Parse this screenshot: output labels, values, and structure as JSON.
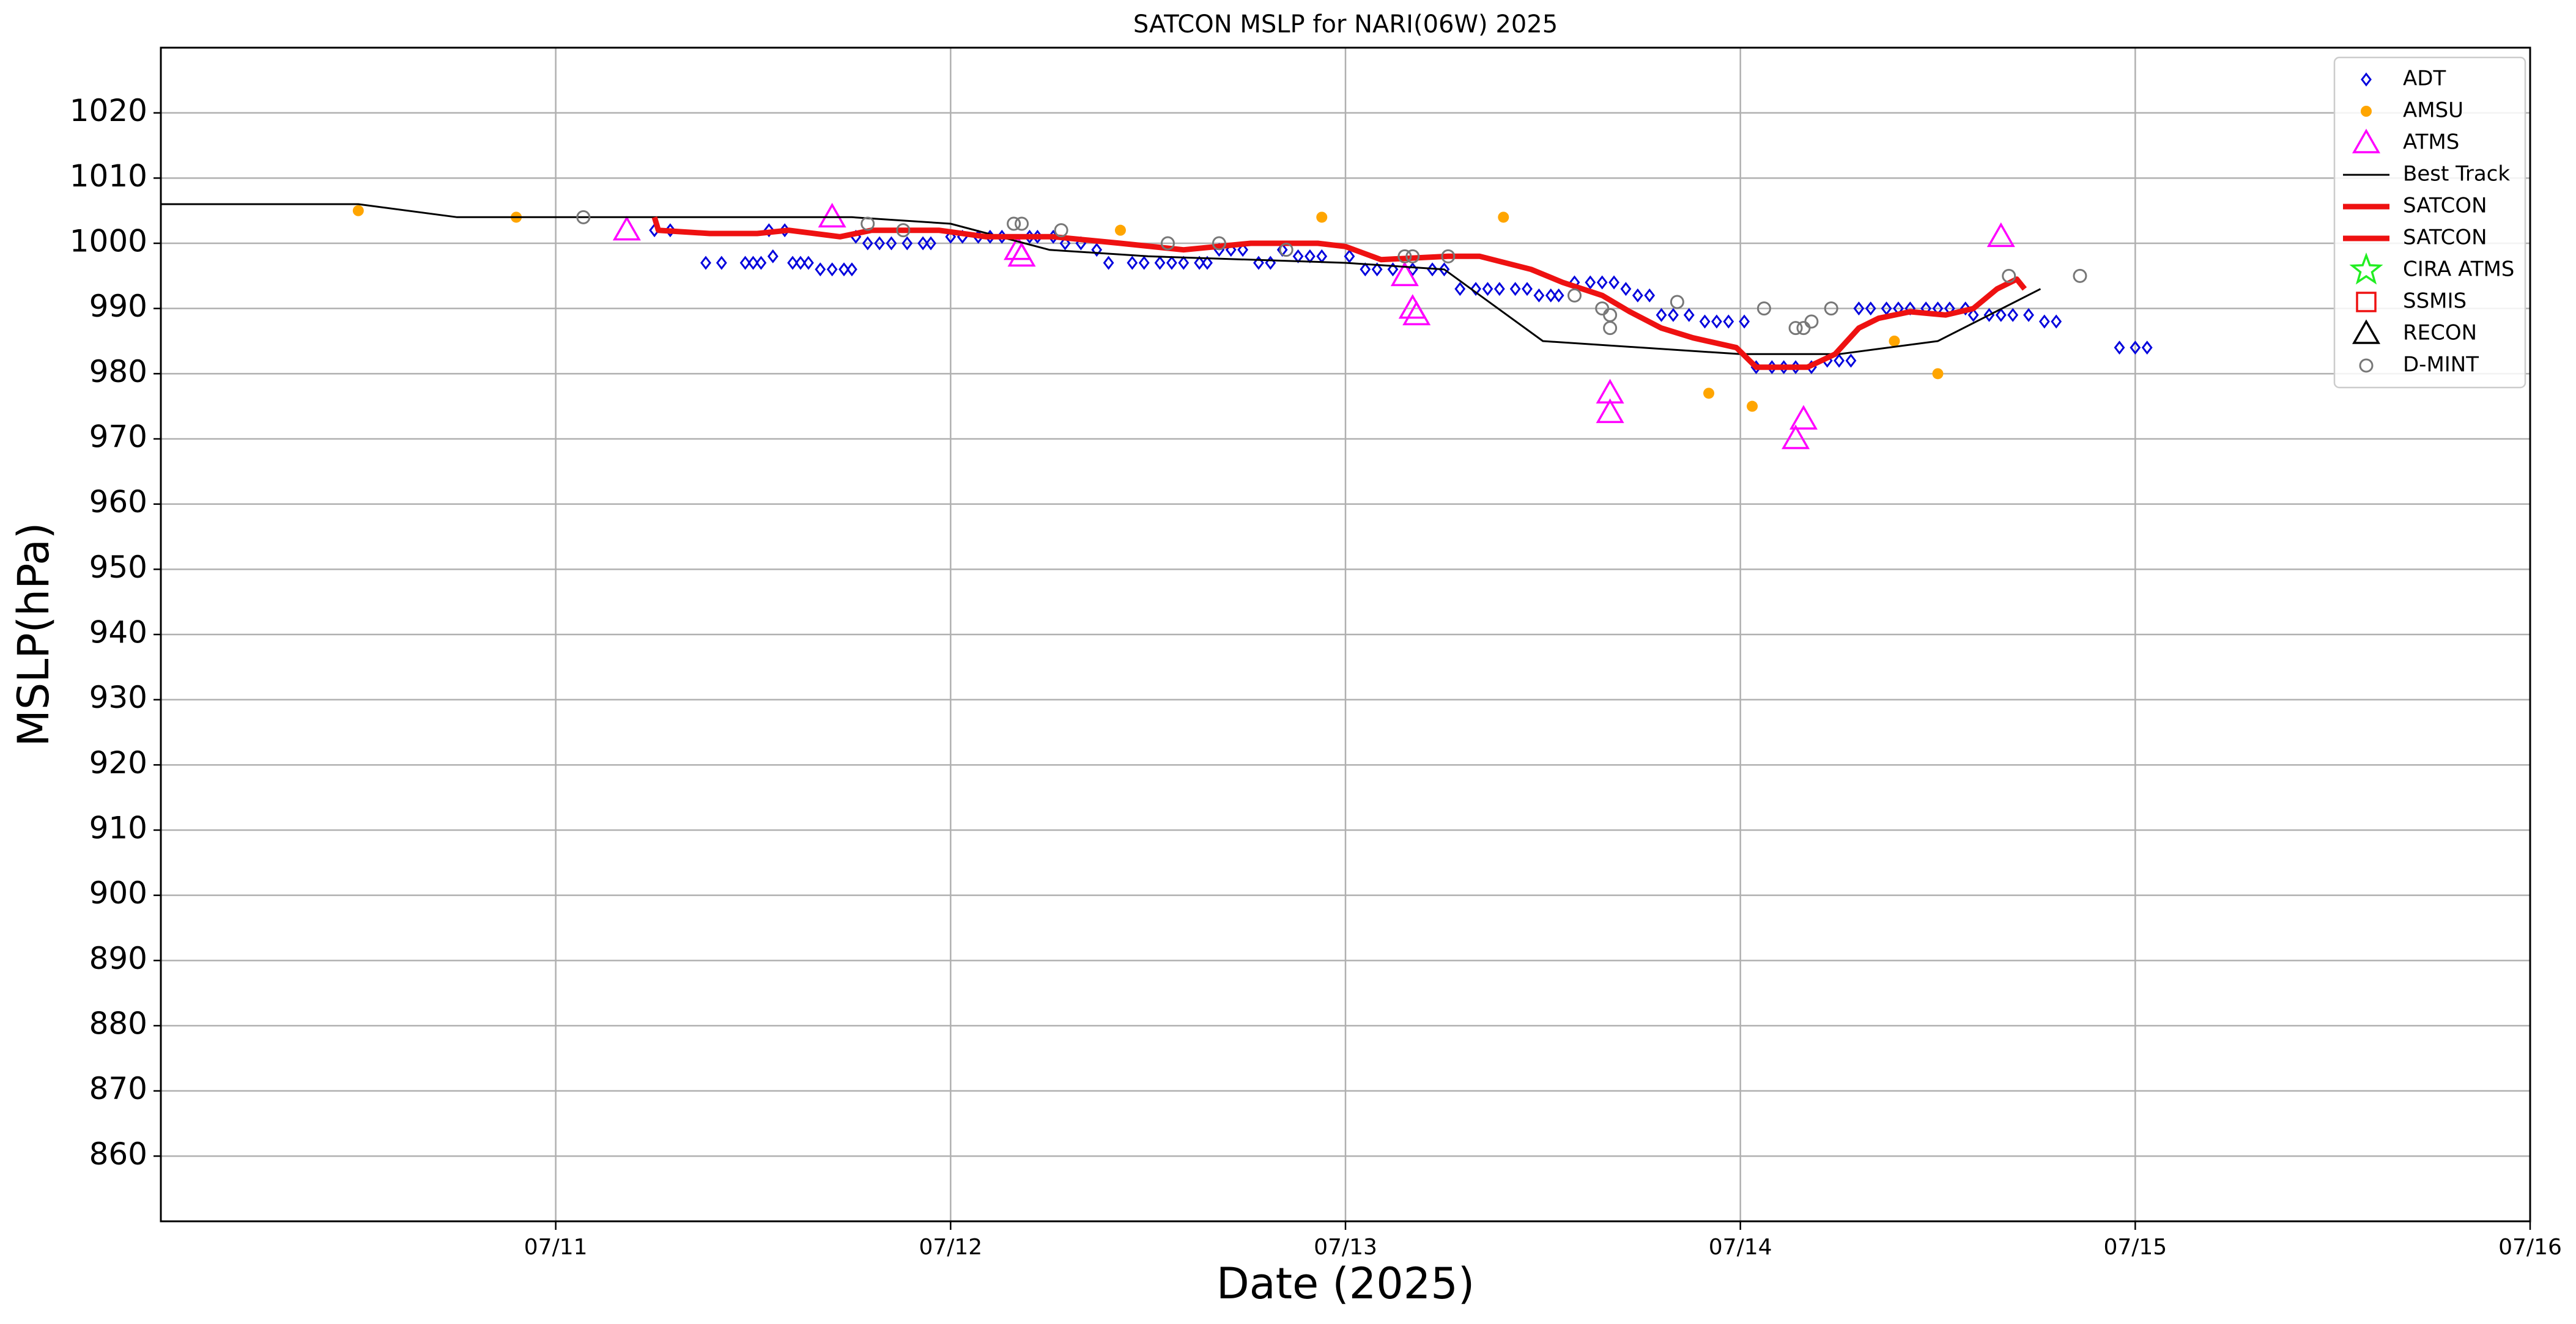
{
  "chart_data": {
    "type": "scatter",
    "title": "SATCON MSLP for NARI(06W) 2025",
    "xlabel": "Date (2025)",
    "ylabel": "MSLP(hPa)",
    "xlim": [
      10,
      16
    ],
    "xticks": [
      {
        "value": 11,
        "label": "07/11"
      },
      {
        "value": 12,
        "label": "07/12"
      },
      {
        "value": 13,
        "label": "07/13"
      },
      {
        "value": 14,
        "label": "07/14"
      },
      {
        "value": 15,
        "label": "07/15"
      },
      {
        "value": 16,
        "label": "07/16"
      }
    ],
    "ylim": [
      850,
      1030
    ],
    "yticks": [
      860,
      870,
      880,
      890,
      900,
      910,
      920,
      930,
      940,
      950,
      960,
      970,
      980,
      990,
      1000,
      1010,
      1020
    ],
    "grid": true,
    "legend": "upper right",
    "series": [
      {
        "name": "ADT",
        "color": "#0000dd",
        "marker": "diamond",
        "x": [
          11.25,
          11.29,
          11.38,
          11.42,
          11.48,
          11.5,
          11.52,
          11.54,
          11.55,
          11.58,
          11.6,
          11.62,
          11.64,
          11.67,
          11.7,
          11.73,
          11.75,
          11.76,
          11.79,
          11.82,
          11.85,
          11.89,
          11.93,
          11.95,
          12.0,
          12.03,
          12.07,
          12.1,
          12.13,
          12.2,
          12.22,
          12.26,
          12.29,
          12.33,
          12.37,
          12.4,
          12.46,
          12.49,
          12.53,
          12.56,
          12.59,
          12.63,
          12.65,
          12.68,
          12.71,
          12.74,
          12.78,
          12.81,
          12.84,
          12.88,
          12.91,
          12.94,
          13.01,
          13.05,
          13.08,
          13.12,
          13.17,
          13.22,
          13.25,
          13.29,
          13.33,
          13.36,
          13.39,
          13.43,
          13.46,
          13.49,
          13.52,
          13.54,
          13.58,
          13.62,
          13.65,
          13.68,
          13.71,
          13.74,
          13.77,
          13.8,
          13.83,
          13.87,
          13.91,
          13.94,
          13.97,
          14.01,
          14.04,
          14.08,
          14.11,
          14.14,
          14.18,
          14.22,
          14.25,
          14.28,
          14.3,
          14.33,
          14.37,
          14.4,
          14.43,
          14.47,
          14.5,
          14.53,
          14.57,
          14.59,
          14.63,
          14.66,
          14.69,
          14.73,
          14.77,
          14.8,
          14.96,
          15.0,
          15.03
        ],
        "values": [
          1002,
          1002,
          997,
          997,
          997,
          997,
          997,
          1002,
          998,
          1002,
          997,
          997,
          997,
          996,
          996,
          996,
          996,
          1001,
          1000,
          1000,
          1000,
          1000,
          1000,
          1000,
          1001,
          1001,
          1001,
          1001,
          1001,
          1001,
          1001,
          1001,
          1000,
          1000,
          999,
          997,
          997,
          997,
          997,
          997,
          997,
          997,
          997,
          999,
          999,
          999,
          997,
          997,
          999,
          998,
          998,
          998,
          998,
          996,
          996,
          996,
          996,
          996,
          996,
          993,
          993,
          993,
          993,
          993,
          993,
          992,
          992,
          992,
          994,
          994,
          994,
          994,
          993,
          992,
          992,
          989,
          989,
          989,
          988,
          988,
          988,
          988,
          981,
          981,
          981,
          981,
          981,
          982,
          982,
          982,
          990,
          990,
          990,
          990,
          990,
          990,
          990,
          990,
          990,
          989,
          989,
          989,
          989,
          989,
          988,
          988,
          984,
          984,
          984
        ]
      },
      {
        "name": "AMSU",
        "color": "#ffa500",
        "marker": "dot",
        "x": [
          10.5,
          10.9,
          12.43,
          12.94,
          13.4,
          13.92,
          14.03,
          14.39,
          14.5
        ],
        "values": [
          1005,
          1004,
          1002,
          1004,
          1004,
          977,
          975,
          985,
          980
        ]
      },
      {
        "name": "ATMS",
        "color": "#ff00ff",
        "marker": "triangle",
        "x": [
          11.18,
          11.7,
          12.17,
          12.18,
          13.15,
          13.17,
          13.18,
          13.67,
          13.67,
          14.14,
          14.16,
          14.66
        ],
        "values": [
          1002,
          1004,
          999,
          998,
          995,
          990,
          989,
          977,
          974,
          970,
          973,
          1001
        ]
      },
      {
        "name": "Best Track",
        "color": "#000000",
        "marker": "line",
        "x": [
          10.0,
          10.5,
          10.75,
          11.75,
          12.0,
          12.25,
          12.5,
          13.0,
          13.25,
          13.5,
          14.0,
          14.25,
          14.5,
          14.76
        ],
        "values": [
          1006,
          1006,
          1004,
          1004,
          1003,
          999,
          998,
          997,
          996,
          985,
          983,
          983,
          985,
          993
        ]
      },
      {
        "name": "SATCON",
        "color": "#ee1111",
        "marker": "thickline",
        "x": [
          11.25,
          11.26,
          11.39,
          11.51,
          11.59,
          11.72,
          11.8,
          11.97,
          12.09,
          12.26,
          12.43,
          12.59,
          12.76,
          12.93,
          13.0,
          13.09,
          13.26,
          13.34,
          13.47,
          13.55,
          13.65,
          13.72,
          13.8,
          13.88,
          13.99,
          14.04,
          14.17,
          14.24,
          14.3,
          14.35,
          14.43,
          14.52,
          14.59,
          14.65,
          14.7,
          14.72
        ],
        "values": [
          1004,
          1002,
          1001.5,
          1001.5,
          1002,
          1001,
          1002,
          1002,
          1001,
          1001,
          1000,
          999,
          1000,
          1000,
          999.5,
          997.5,
          998,
          998,
          996,
          994,
          992,
          989.5,
          987,
          985.5,
          984,
          981,
          981,
          983,
          987,
          988.5,
          989.5,
          989,
          990,
          993,
          994.5,
          993
        ]
      },
      {
        "name": "SATCON",
        "color": "#ee1111",
        "marker": "thickline",
        "x": [],
        "values": []
      },
      {
        "name": "CIRA ATMS",
        "color": "#22ee22",
        "marker": "star",
        "x": [],
        "values": []
      },
      {
        "name": "SSMIS",
        "color": "#ee1111",
        "marker": "square",
        "x": [],
        "values": []
      },
      {
        "name": "RECON",
        "color": "#000000",
        "marker": "triangle",
        "x": [],
        "values": []
      },
      {
        "name": "D-MINT",
        "color": "#777777",
        "marker": "circle",
        "x": [
          11.07,
          11.79,
          11.88,
          12.16,
          12.18,
          12.28,
          12.55,
          12.68,
          12.85,
          13.15,
          13.17,
          13.26,
          13.58,
          13.65,
          13.67,
          13.67,
          13.84,
          14.06,
          14.14,
          14.16,
          14.18,
          14.23,
          14.68,
          14.86
        ],
        "values": [
          1004,
          1003,
          1002,
          1003,
          1003,
          1002,
          1000,
          1000,
          999,
          998,
          998,
          998,
          992,
          990,
          989,
          987,
          991,
          990,
          987,
          987,
          988,
          990,
          995,
          995
        ]
      }
    ]
  }
}
